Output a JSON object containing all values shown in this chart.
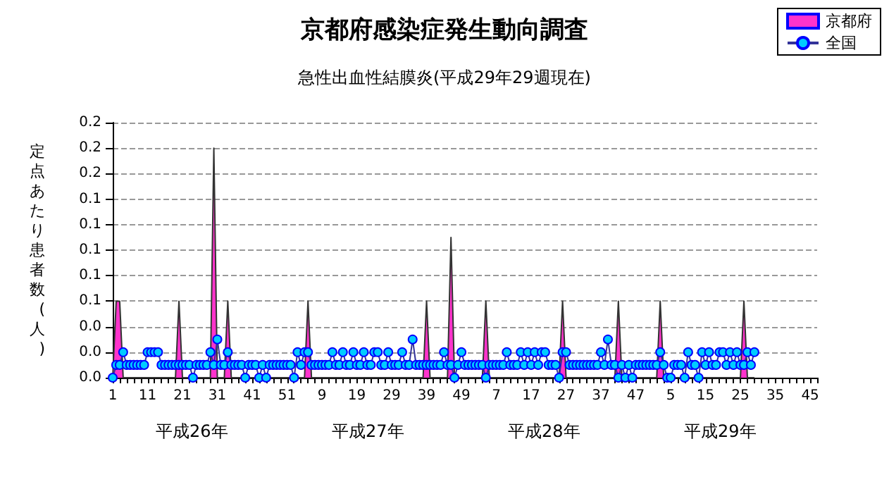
{
  "chart_data": {
    "type": "line",
    "title": "京都府感染症発生動向調査",
    "subtitle": "急性出血性結膜炎(平成29年29週現在)",
    "ylabel": "定点あたり患者数(人)",
    "categories": [
      "1",
      null,
      null,
      null,
      null,
      null,
      null,
      null,
      null,
      null,
      "11",
      null,
      null,
      null,
      null,
      null,
      null,
      null,
      null,
      null,
      "21",
      null,
      null,
      null,
      null,
      null,
      null,
      null,
      null,
      null,
      "31",
      null,
      null,
      null,
      null,
      null,
      null,
      null,
      null,
      null,
      "41",
      null,
      null,
      null,
      null,
      null,
      null,
      null,
      null,
      null,
      "51",
      null,
      null,
      null,
      null,
      null,
      null,
      null,
      null,
      null,
      "9",
      null,
      null,
      null,
      null,
      null,
      null,
      null,
      null,
      null,
      "19",
      null,
      null,
      null,
      null,
      null,
      null,
      null,
      null,
      null,
      "29",
      null,
      null,
      null,
      null,
      null,
      null,
      null,
      null,
      null,
      "39",
      null,
      null,
      null,
      null,
      null,
      null,
      null,
      null,
      null,
      "49",
      null,
      null,
      null,
      null,
      null,
      null,
      null,
      null,
      null,
      "7",
      null,
      null,
      null,
      null,
      null,
      null,
      null,
      null,
      null,
      "17",
      null,
      null,
      null,
      null,
      null,
      null,
      null,
      null,
      null,
      "27",
      null,
      null,
      null,
      null,
      null,
      null,
      null,
      null,
      null,
      "37",
      null,
      null,
      null,
      null,
      null,
      null,
      null,
      null,
      null,
      "47",
      null,
      null,
      null,
      null,
      null,
      null,
      null,
      null,
      null,
      "5",
      null,
      null,
      null,
      null,
      null,
      null,
      null,
      null,
      null,
      "15",
      null,
      null,
      null,
      null,
      null,
      null,
      null,
      null,
      null,
      "25",
      null,
      null,
      null,
      null,
      null,
      null,
      null,
      null,
      null,
      "35",
      null,
      null,
      null,
      null,
      null,
      null,
      null,
      null,
      null,
      "45",
      null,
      null
    ],
    "series": [
      {
        "name": "京都府",
        "type": "area",
        "color": "#ff33cc",
        "marker": "none",
        "values": [
          0,
          0.06,
          0.06,
          0,
          0,
          0,
          0,
          0,
          0,
          0,
          0,
          0,
          0,
          0,
          0,
          0,
          0,
          0,
          0,
          0.06,
          0,
          0,
          0,
          0,
          0,
          0,
          0,
          0,
          0,
          0.18,
          0,
          0,
          0,
          0.06,
          0,
          0,
          0,
          0,
          0,
          0,
          0,
          0,
          0,
          0,
          0,
          0,
          0,
          0,
          0,
          0,
          0,
          0,
          0,
          0,
          0,
          0,
          0.06,
          0,
          0,
          0,
          0,
          0,
          0,
          0,
          0,
          0,
          0,
          0,
          0,
          0,
          0,
          0,
          0,
          0,
          0,
          0,
          0,
          0,
          0,
          0,
          0,
          0,
          0,
          0,
          0,
          0,
          0,
          0,
          0,
          0,
          0.06,
          0,
          0,
          0,
          0,
          0,
          0,
          0.11,
          0,
          0,
          0,
          0,
          0,
          0,
          0,
          0,
          0,
          0.06,
          0,
          0,
          0,
          0,
          0,
          0,
          0,
          0,
          0,
          0,
          0,
          0,
          0,
          0,
          0,
          0,
          0,
          0,
          0,
          0,
          0,
          0.06,
          0,
          0,
          0,
          0,
          0,
          0,
          0,
          0,
          0,
          0,
          0,
          0,
          0,
          0,
          0,
          0.06,
          0,
          0,
          0,
          0,
          0,
          0,
          0,
          0,
          0,
          0,
          0,
          0.06,
          0,
          0,
          0,
          0,
          0,
          0,
          0,
          0,
          0,
          0,
          0,
          0,
          0,
          0,
          0,
          0,
          0,
          0,
          0,
          0,
          0,
          0,
          0,
          0.06,
          0,
          0,
          0,
          null,
          null,
          null,
          null,
          null,
          null,
          null,
          null,
          null,
          null,
          null,
          null,
          null,
          null,
          null,
          null,
          null,
          null
        ]
      },
      {
        "name": "全国",
        "type": "line",
        "color": "#00ccff",
        "marker": "circle",
        "values": [
          0,
          0.01,
          0.01,
          0.02,
          0.01,
          0.01,
          0.01,
          0.01,
          0.01,
          0.01,
          0.02,
          0.02,
          0.02,
          0.02,
          0.01,
          0.01,
          0.01,
          0.01,
          0.01,
          0.01,
          0.01,
          0.01,
          0.01,
          0,
          0.01,
          0.01,
          0.01,
          0.01,
          0.02,
          0.01,
          0.03,
          0.01,
          0.01,
          0.02,
          0.01,
          0.01,
          0.01,
          0.01,
          0,
          0.01,
          0.01,
          0.01,
          0,
          0.01,
          0,
          0.01,
          0.01,
          0.01,
          0.01,
          0.01,
          0.01,
          0.01,
          0,
          0.02,
          0.01,
          0.02,
          0.02,
          0.01,
          0.01,
          0.01,
          0.01,
          0.01,
          0.01,
          0.02,
          0.01,
          0.01,
          0.02,
          0.01,
          0.01,
          0.02,
          0.01,
          0.01,
          0.02,
          0.01,
          0.01,
          0.02,
          0.02,
          0.01,
          0.01,
          0.02,
          0.01,
          0.01,
          0.01,
          0.02,
          0.01,
          0.01,
          0.03,
          0.01,
          0.01,
          0.01,
          0.01,
          0.01,
          0.01,
          0.01,
          0.01,
          0.02,
          0.01,
          0.01,
          0,
          0.01,
          0.02,
          0.01,
          0.01,
          0.01,
          0.01,
          0.01,
          0.01,
          0,
          0.01,
          0.01,
          0.01,
          0.01,
          0.01,
          0.02,
          0.01,
          0.01,
          0.01,
          0.02,
          0.01,
          0.02,
          0.01,
          0.02,
          0.01,
          0.02,
          0.02,
          0.01,
          0.01,
          0.01,
          0,
          0.02,
          0.02,
          0.01,
          0.01,
          0.01,
          0.01,
          0.01,
          0.01,
          0.01,
          0.01,
          0.01,
          0.02,
          0.01,
          0.03,
          0.01,
          0.01,
          0,
          0.01,
          0,
          0.01,
          0,
          0.01,
          0.01,
          0.01,
          0.01,
          0.01,
          0.01,
          0.01,
          0.02,
          0.01,
          0,
          0,
          0.01,
          0.01,
          0.01,
          0,
          0.02,
          0.01,
          0.01,
          0,
          0.02,
          0.01,
          0.02,
          0.01,
          0.01,
          0.02,
          0.02,
          0.01,
          0.02,
          0.01,
          0.02,
          0.01,
          0.01,
          0.02,
          0.01,
          0.02,
          null,
          null,
          null,
          null,
          null,
          null,
          null,
          null,
          null,
          null,
          null,
          null,
          null,
          null,
          null,
          null,
          null,
          null
        ]
      }
    ],
    "ylim": [
      0,
      0.2
    ],
    "yticks": [
      {
        "value": 0,
        "label": "0.0"
      },
      {
        "value": 0.02,
        "label": "0.0"
      },
      {
        "value": 0.04,
        "label": "0.0"
      },
      {
        "value": 0.06,
        "label": "0.1"
      },
      {
        "value": 0.08,
        "label": "0.1"
      },
      {
        "value": 0.1,
        "label": "0.1"
      },
      {
        "value": 0.12,
        "label": "0.1"
      },
      {
        "value": 0.14,
        "label": "0.1"
      },
      {
        "value": 0.16,
        "label": "0.2"
      },
      {
        "value": 0.18,
        "label": "0.2"
      },
      {
        "value": 0.2,
        "label": "0.2"
      }
    ],
    "grid": "y",
    "legend": "top right",
    "line_style": "solid",
    "annotations": [
      "平成26年",
      "平成27年",
      "平成28年",
      "平成29年"
    ]
  }
}
